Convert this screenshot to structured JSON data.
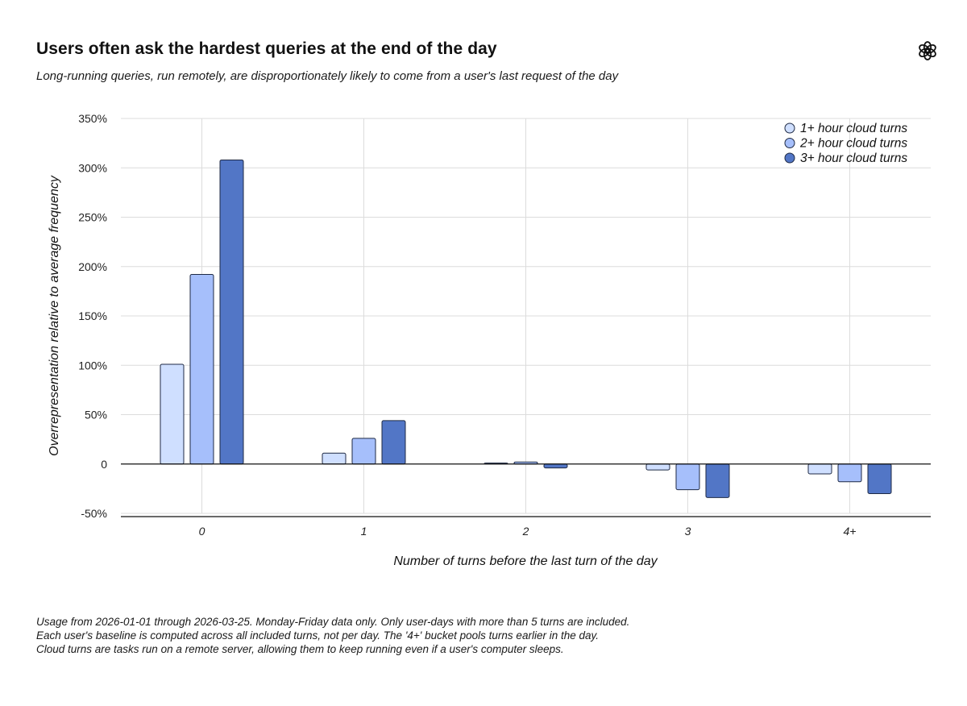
{
  "header": {
    "title": "Users often ask the hardest queries at the end of the day",
    "subtitle": "Long-running queries, run remotely, are disproportionately likely to come from a user's last request of the day"
  },
  "logo": {
    "icon": "openai-logo-icon"
  },
  "chart_data": {
    "type": "bar",
    "categories": [
      "0",
      "1",
      "2",
      "3",
      "4+"
    ],
    "series": [
      {
        "name": "1+ hour cloud turns",
        "color": "#cfdfff",
        "values": [
          101,
          11,
          1,
          -6,
          -10
        ]
      },
      {
        "name": "2+ hour cloud turns",
        "color": "#a6bffb",
        "values": [
          192,
          26,
          2,
          -26,
          -18
        ]
      },
      {
        "name": "3+ hour cloud turns",
        "color": "#5276c6",
        "values": [
          308,
          44,
          -4,
          -34,
          -30
        ]
      }
    ],
    "xlabel": "Number of turns before the last turn of the day",
    "ylabel": "Overrepresentation relative to average frequency",
    "ylim": [
      -50,
      350
    ],
    "yticks": [
      350,
      300,
      250,
      200,
      150,
      100,
      50,
      0,
      -50
    ],
    "ytick_labels": [
      "350%",
      "300%",
      "250%",
      "200%",
      "150%",
      "100%",
      "50%",
      "0",
      "-50%"
    ],
    "grid": true,
    "legend_position": "top-right"
  },
  "footnotes": [
    "Usage from 2026-01-01 through 2026-03-25. Monday-Friday data only. Only user-days with more than 5 turns are included.",
    "Each user's baseline is computed across all included turns, not per day. The '4+' bucket pools turns earlier in the day.",
    "Cloud turns are tasks run on a remote server, allowing them to keep running even if a user's computer sleeps."
  ]
}
